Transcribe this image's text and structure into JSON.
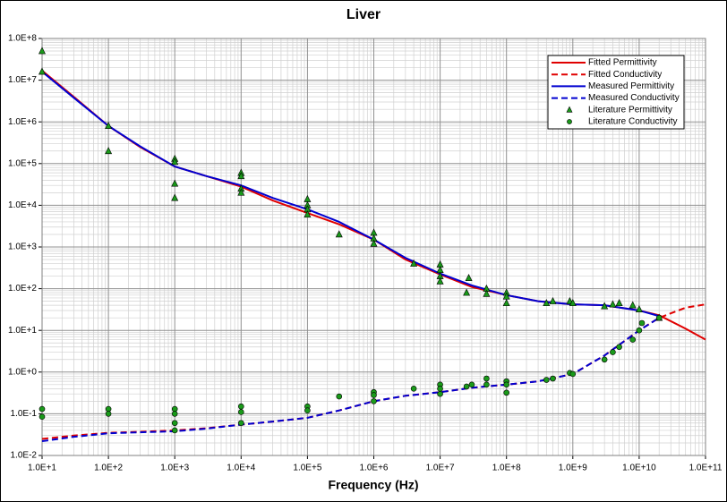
{
  "chart_data": {
    "type": "line",
    "title": "Liver",
    "x_label": "Frequency (Hz)",
    "xscale": "log",
    "yscale": "log",
    "xlim": [
      10,
      100000000000
    ],
    "ylim": [
      0.01,
      100000000
    ],
    "xticks": [
      {
        "value": 10,
        "label": "1.0E+1"
      },
      {
        "value": 100,
        "label": "1.0E+2"
      },
      {
        "value": 1000,
        "label": "1.0E+3"
      },
      {
        "value": 10000,
        "label": "1.0E+4"
      },
      {
        "value": 100000,
        "label": "1.0E+5"
      },
      {
        "value": 1000000,
        "label": "1.0E+6"
      },
      {
        "value": 10000000,
        "label": "1.0E+7"
      },
      {
        "value": 100000000,
        "label": "1.0E+8"
      },
      {
        "value": 1000000000,
        "label": "1.0E+9"
      },
      {
        "value": 10000000000,
        "label": "1.0E+10"
      },
      {
        "value": 100000000000,
        "label": "1.0E+11"
      }
    ],
    "yticks": [
      {
        "value": 0.01,
        "label": "1.0E-2"
      },
      {
        "value": 0.1,
        "label": "1.0E-1"
      },
      {
        "value": 1,
        "label": "1.0E+0"
      },
      {
        "value": 10,
        "label": "1.0E+1"
      },
      {
        "value": 100,
        "label": "1.0E+2"
      },
      {
        "value": 1000,
        "label": "1.0E+3"
      },
      {
        "value": 10000,
        "label": "1.0E+4"
      },
      {
        "value": 100000,
        "label": "1.0E+5"
      },
      {
        "value": 1000000,
        "label": "1.0E+6"
      },
      {
        "value": 10000000,
        "label": "1.0E+7"
      },
      {
        "value": 100000000,
        "label": "1.0E+8"
      }
    ],
    "grid": true,
    "minor_grid": true,
    "legend": "upper right",
    "series": [
      {
        "name": "Fitted Permittivity",
        "color": "#e00000",
        "dash": false,
        "x": [
          10,
          30,
          100,
          300,
          1000,
          3000,
          10000,
          30000,
          100000,
          300000,
          1000000,
          3000000,
          10000000,
          30000000,
          100000000,
          300000000,
          1000000000,
          3000000000,
          10000000000,
          20000000000,
          50000000000,
          100000000000
        ],
        "values": [
          17000000,
          4000000,
          800000,
          250000,
          85000,
          50000,
          28000,
          13000,
          6500,
          3500,
          1500,
          500,
          220,
          110,
          70,
          50,
          42,
          40,
          30,
          23,
          11,
          6
        ]
      },
      {
        "name": "Fitted Conductivity",
        "color": "#e00000",
        "dash": true,
        "x": [
          10,
          30,
          100,
          300,
          1000,
          3000,
          10000,
          30000,
          100000,
          300000,
          1000000,
          3000000,
          10000000,
          30000000,
          100000000,
          300000000,
          1000000000,
          3000000000,
          10000000000,
          20000000000,
          50000000000,
          100000000000
        ],
        "values": [
          0.025,
          0.03,
          0.035,
          0.037,
          0.04,
          0.045,
          0.055,
          0.065,
          0.08,
          0.12,
          0.2,
          0.27,
          0.33,
          0.42,
          0.5,
          0.6,
          0.9,
          2.5,
          10,
          20,
          35,
          42
        ]
      },
      {
        "name": "Measured Permittivity",
        "color": "#0000d0",
        "dash": false,
        "x": [
          10,
          30,
          100,
          300,
          1000,
          3000,
          10000,
          30000,
          100000,
          300000,
          1000000,
          3000000,
          10000000,
          30000000,
          100000000,
          300000000,
          1000000000,
          3000000000,
          10000000000,
          20000000000
        ],
        "values": [
          16000000,
          3800000,
          800000,
          260000,
          85000,
          50000,
          30000,
          15000,
          8000,
          4000,
          1500,
          550,
          230,
          120,
          70,
          50,
          42,
          40,
          30,
          22
        ]
      },
      {
        "name": "Measured Conductivity",
        "color": "#0000d0",
        "dash": true,
        "x": [
          10,
          30,
          100,
          300,
          1000,
          3000,
          10000,
          30000,
          100000,
          300000,
          1000000,
          3000000,
          10000000,
          30000000,
          100000000,
          300000000,
          1000000000,
          3000000000,
          10000000000,
          20000000000
        ],
        "values": [
          0.022,
          0.028,
          0.034,
          0.036,
          0.038,
          0.044,
          0.055,
          0.065,
          0.08,
          0.12,
          0.2,
          0.27,
          0.33,
          0.42,
          0.5,
          0.6,
          0.9,
          2.5,
          10,
          20
        ]
      },
      {
        "name": "Literature Permittivity",
        "color": "#1a9a1a",
        "marker": "triangle",
        "x": [
          10,
          10,
          100,
          100,
          1000,
          1000,
          1000,
          1000,
          10000,
          10000,
          10000,
          10000,
          100000,
          100000,
          100000,
          100000,
          300000,
          1000000,
          1000000,
          1000000,
          4000000,
          10000000,
          10000000,
          10000000,
          10000000,
          25000000,
          27000000,
          50000000,
          50000000,
          100000000,
          100000000,
          100000000,
          400000000,
          500000000,
          900000000,
          1000000000,
          3000000000,
          4000000000,
          5000000000,
          8000000000,
          10000000000,
          20000000000
        ],
        "values": [
          50000000,
          16000000,
          800000,
          200000,
          130000,
          110000,
          33000,
          15000,
          60000,
          50000,
          25000,
          20000,
          14000,
          10000,
          8000,
          6000,
          2000,
          2200,
          1600,
          1200,
          400,
          380,
          280,
          200,
          150,
          80,
          180,
          100,
          75,
          80,
          65,
          45,
          45,
          50,
          50,
          45,
          38,
          42,
          45,
          40,
          32,
          20
        ]
      },
      {
        "name": "Literature Conductivity",
        "color": "#1a9a1a",
        "marker": "circle",
        "x": [
          10,
          10,
          100,
          100,
          1000,
          1000,
          1000,
          1000,
          10000,
          10000,
          10000,
          100000,
          100000,
          300000,
          1000000,
          1000000,
          1000000,
          4000000,
          10000000,
          10000000,
          10000000,
          25000000,
          30000000,
          50000000,
          50000000,
          100000000,
          100000000,
          100000000,
          400000000,
          500000000,
          900000000,
          1000000000,
          3000000000,
          4000000000,
          5000000000,
          8000000000,
          10000000000,
          11000000000,
          20000000000
        ],
        "values": [
          0.13,
          0.085,
          0.13,
          0.1,
          0.13,
          0.1,
          0.06,
          0.04,
          0.15,
          0.11,
          0.06,
          0.15,
          0.12,
          0.26,
          0.33,
          0.28,
          0.2,
          0.4,
          0.5,
          0.4,
          0.3,
          0.45,
          0.5,
          0.7,
          0.5,
          0.6,
          0.5,
          0.32,
          0.65,
          0.7,
          0.95,
          0.9,
          2,
          3,
          4,
          6,
          10,
          15,
          20
        ]
      }
    ]
  }
}
